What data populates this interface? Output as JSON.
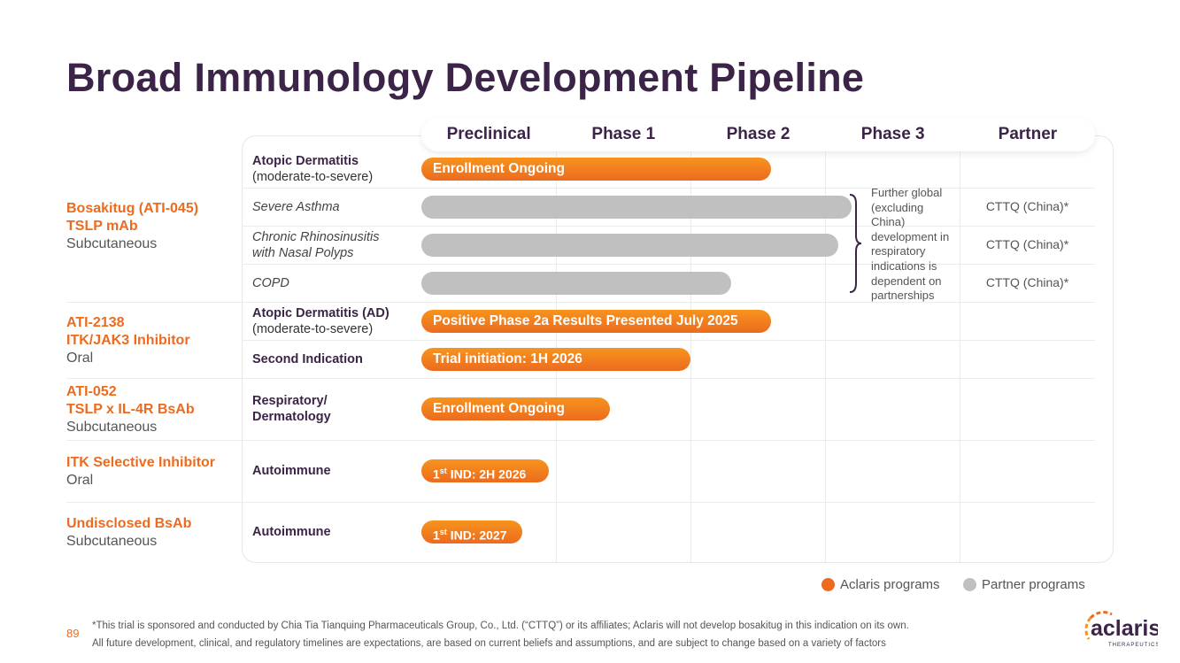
{
  "title": "Broad Immunology Development Pipeline",
  "phases": [
    "Preclinical",
    "Phase 1",
    "Phase 2",
    "Phase 3",
    "Partner"
  ],
  "programs": [
    {
      "name": "Bosakitug (ATI-045)",
      "target": "TSLP mAb",
      "route": "Subcutaneous"
    },
    {
      "name": "ATI-2138",
      "target": "ITK/JAK3 Inhibitor",
      "route": "Oral"
    },
    {
      "name": "ATI-052",
      "target": "TSLP x IL-4R BsAb",
      "route": "Subcutaneous"
    },
    {
      "name": "ITK Selective Inhibitor",
      "route": "Oral"
    },
    {
      "name": "Undisclosed BsAb",
      "route": "Subcutaneous"
    }
  ],
  "indications": [
    {
      "l1": "Atopic Dermatitis",
      "l2": "(moderate-to-severe)",
      "bar": "Enrollment Ongoing",
      "progress_phase": 2.6,
      "type": "aclaris"
    },
    {
      "l1": "Severe Asthma",
      "bar": "",
      "progress_phase": 3.2,
      "type": "partner",
      "partner": "CTTQ (China)*"
    },
    {
      "l1": "Chronic Rhinosinusitis",
      "l2": "with Nasal Polyps",
      "bar": "",
      "progress_phase": 3.1,
      "type": "partner",
      "partner": "CTTQ (China)*"
    },
    {
      "l1": "COPD",
      "bar": "",
      "progress_phase": 2.3,
      "type": "partner",
      "partner": "CTTQ (China)*"
    },
    {
      "l1": "Atopic Dermatitis (AD)",
      "l2": "(moderate-to-severe)",
      "bar": "Positive Phase 2a Results Presented July 2025",
      "progress_phase": 2.6,
      "type": "aclaris"
    },
    {
      "l1": "Second Indication",
      "bar": "Trial initiation: 1H 2026",
      "progress_phase": 2.0,
      "type": "aclaris"
    },
    {
      "l1": "Respiratory/",
      "l2": "Dermatology",
      "bar": "Enrollment Ongoing",
      "progress_phase": 1.4,
      "type": "aclaris"
    },
    {
      "l1": "Autoimmune",
      "bar_pre": "1",
      "bar_sup": "st",
      "bar_post": " IND: 2H 2026",
      "progress_phase": 0.95,
      "type": "aclaris"
    },
    {
      "l1": "Autoimmune",
      "bar_pre": "1",
      "bar_sup": "st",
      "bar_post": " IND: 2027",
      "progress_phase": 0.75,
      "type": "aclaris"
    }
  ],
  "note": "Further global (excluding China) development in respiratory indications is dependent on partnerships",
  "legend": {
    "aclaris": "Aclaris programs",
    "partner": "Partner programs",
    "aclaris_color": "#ec6b1f",
    "partner_color": "#c0c0c0"
  },
  "page_number": "89",
  "footnote1": "*This trial is sponsored and conducted by Chia Tia Tianquing Pharmaceuticals Group, Co., Ltd. (“CTTQ”) or its affiliates; Aclaris will not develop bosakitug in this indication on its own.",
  "footnote2": "All future development, clinical, and regulatory timelines are expectations, are based on current beliefs and assumptions, and are subject to change based on a variety of factors",
  "logo": {
    "name": "aclaris",
    "sub": "THERAPEUTICS"
  }
}
